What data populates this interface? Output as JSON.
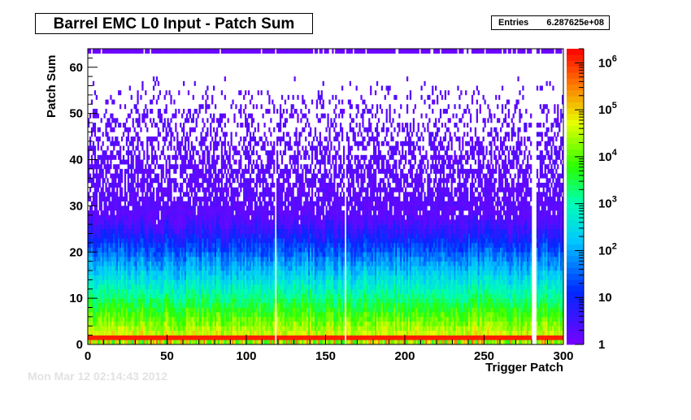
{
  "chart_data": {
    "type": "heatmap",
    "title": "Barrel EMC L0 Input - Patch Sum",
    "xlabel": "Trigger Patch",
    "ylabel": "Patch Sum",
    "xlim": [
      0,
      300
    ],
    "ylim": [
      0,
      64
    ],
    "x_ticks": [
      "0",
      "50",
      "100",
      "150",
      "200",
      "250",
      "300"
    ],
    "y_ticks": [
      "0",
      "10",
      "20",
      "30",
      "40",
      "50",
      "60"
    ],
    "color_scale": "log",
    "z_range": [
      1,
      2000000
    ],
    "colorbar_ticks": [
      {
        "value": 1,
        "base": "1",
        "exp": ""
      },
      {
        "value": 10,
        "base": "10",
        "exp": ""
      },
      {
        "value": 100,
        "base": "10",
        "exp": "2"
      },
      {
        "value": 1000,
        "base": "10",
        "exp": "3"
      },
      {
        "value": 10000,
        "base": "10",
        "exp": "4"
      },
      {
        "value": 100000,
        "base": "10",
        "exp": "5"
      },
      {
        "value": 1000000,
        "base": "10",
        "exp": "6"
      }
    ],
    "stats": {
      "label": "Entries",
      "value": "6.287625e+08"
    },
    "dead_patch_columns": [
      118,
      162,
      280,
      281,
      282
    ],
    "saturation_row_y": 63,
    "grid": false,
    "legend": "colorbar-right"
  },
  "footer_stamp": "Mon Mar 12 02:14:43 2012"
}
